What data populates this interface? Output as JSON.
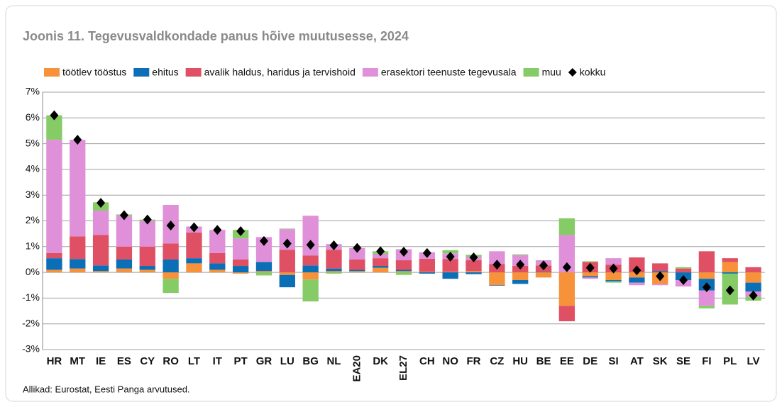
{
  "chart_data": {
    "type": "bar",
    "stacked": true,
    "title": "Joonis 11. Tegevusvaldkondade panus hõive muutusesse, 2024",
    "source": "Allikad: Eurostat, Eesti Panga arvutused.",
    "categories": [
      "HR",
      "MT",
      "IE",
      "ES",
      "CY",
      "RO",
      "LT",
      "IT",
      "PT",
      "GR",
      "LU",
      "BG",
      "NL",
      "EA20",
      "DK",
      "EL27",
      "CH",
      "NO",
      "FR",
      "CZ",
      "HU",
      "BE",
      "EE",
      "DE",
      "SI",
      "AT",
      "SK",
      "SE",
      "FI",
      "PL",
      "LV"
    ],
    "series": [
      {
        "name": "töötlev tööstus",
        "color": "#f7923a",
        "values": [
          0.1,
          0.15,
          0.05,
          0.15,
          0.1,
          -0.25,
          0.35,
          0.1,
          -0.05,
          0.05,
          -0.1,
          -0.28,
          0.05,
          0.05,
          0.18,
          0.05,
          0.02,
          0.02,
          0.05,
          -0.5,
          -0.3,
          -0.2,
          -1.3,
          -0.15,
          -0.3,
          -0.2,
          -0.45,
          0,
          -0.25,
          0.4,
          -0.4
        ]
      },
      {
        "name": "ehitus",
        "color": "#0b6fb8",
        "values": [
          0.45,
          0.37,
          0.22,
          0.35,
          0.15,
          0.5,
          0.2,
          0.25,
          0.25,
          0.35,
          -0.48,
          0.27,
          0.1,
          0.05,
          0.07,
          0.05,
          -0.05,
          -0.25,
          -0.07,
          -0.02,
          -0.15,
          0.02,
          0,
          -0.05,
          -0.05,
          -0.2,
          0.05,
          -0.3,
          -0.45,
          -0.05,
          -0.35
        ]
      },
      {
        "name": "avalik haldus, haridus ja tervishoid",
        "color": "#e05064",
        "values": [
          0.2,
          0.88,
          1.18,
          0.5,
          0.75,
          0.62,
          1.0,
          0.4,
          0.25,
          0,
          0.88,
          0.38,
          0.73,
          0.4,
          0.3,
          0.37,
          0.51,
          0.5,
          0.42,
          0.32,
          0.25,
          0.25,
          -0.6,
          0.4,
          0.3,
          0.58,
          0.3,
          0.15,
          0.82,
          0.15,
          0.2
        ]
      },
      {
        "name": "erasektori teenuste tegevusala",
        "color": "#e090d8",
        "values": [
          4.4,
          3.75,
          0.95,
          1.2,
          1.0,
          1.5,
          0.23,
          0.9,
          0.82,
          0.97,
          0.8,
          1.55,
          0.22,
          0.45,
          0.17,
          0.43,
          0.25,
          0.22,
          0.13,
          0.5,
          0.42,
          0.2,
          1.45,
          -0.05,
          0.25,
          -0.1,
          -0.05,
          -0.25,
          -0.6,
          0,
          -0.2
        ]
      },
      {
        "name": "muu",
        "color": "#86cc66",
        "values": [
          0.95,
          0,
          0.32,
          0.05,
          0.05,
          -0.55,
          0,
          0,
          0.33,
          -0.12,
          0.02,
          -0.85,
          -0.05,
          0,
          0.1,
          -0.1,
          0,
          0.12,
          0.08,
          0,
          0.03,
          0,
          0.65,
          0.03,
          -0.05,
          0,
          0,
          0.05,
          -0.1,
          -1.2,
          -0.15
        ]
      }
    ],
    "total": {
      "name": "kokku",
      "color": "#000000",
      "values": [
        6.1,
        5.15,
        2.7,
        2.22,
        2.05,
        1.82,
        1.75,
        1.65,
        1.6,
        1.22,
        1.12,
        1.07,
        1.05,
        0.95,
        0.82,
        0.8,
        0.75,
        0.61,
        0.58,
        0.3,
        0.3,
        0.27,
        0.2,
        0.18,
        0.15,
        0.08,
        -0.15,
        -0.3,
        -0.58,
        -0.7,
        -0.9
      ]
    },
    "ylim": [
      -3,
      7
    ],
    "yticks": [
      {
        "value": -3,
        "label": "-3%"
      },
      {
        "value": -2,
        "label": "-2%"
      },
      {
        "value": -1,
        "label": "-1%"
      },
      {
        "value": 0,
        "label": "0%"
      },
      {
        "value": 1,
        "label": "1%"
      },
      {
        "value": 2,
        "label": "2%"
      },
      {
        "value": 3,
        "label": "3%"
      },
      {
        "value": 4,
        "label": "4%"
      },
      {
        "value": 5,
        "label": "5%"
      },
      {
        "value": 6,
        "label": "6%"
      },
      {
        "value": 7,
        "label": "7%"
      }
    ],
    "grid": true,
    "legend": "top"
  }
}
